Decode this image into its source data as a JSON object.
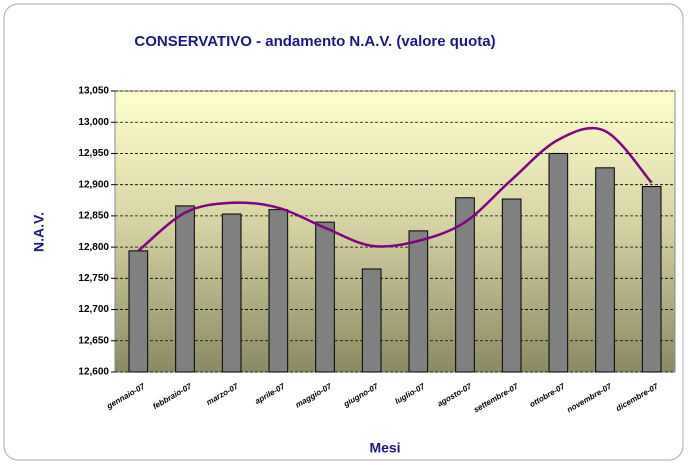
{
  "chart_data": {
    "type": "bar",
    "title": "CONSERVATIVO - andamento N.A.V. (valore quota)",
    "y_label": "N.A.V.",
    "x_label": "Mesi",
    "categories": [
      "gennaio-07",
      "febbraio-07",
      "marzo-07",
      "aprile-07",
      "maggio-07",
      "giugno-07",
      "luglio-07",
      "agosto-07",
      "settembre-07",
      "ottobre-07",
      "novembre-07",
      "dicembre-07"
    ],
    "series": [
      {
        "type": "bar",
        "color": "#808080",
        "values": [
          12.794,
          12.866,
          12.853,
          12.86,
          12.84,
          12.765,
          12.826,
          12.879,
          12.877,
          12.95,
          12.927,
          12.897
        ]
      },
      {
        "type": "line",
        "color": "#800080",
        "values": [
          12.794,
          12.855,
          12.871,
          12.863,
          12.831,
          12.802,
          12.81,
          12.84,
          12.908,
          12.972,
          12.986,
          12.903
        ]
      }
    ],
    "ylim": [
      12.6,
      13.05
    ],
    "yticks": [
      {
        "value": 12.6,
        "label": "12,600"
      },
      {
        "value": 12.65,
        "label": "12,650"
      },
      {
        "value": 12.7,
        "label": "12,700"
      },
      {
        "value": 12.75,
        "label": "12,750"
      },
      {
        "value": 12.8,
        "label": "12,800"
      },
      {
        "value": 12.85,
        "label": "12,850"
      },
      {
        "value": 12.9,
        "label": "12,900"
      },
      {
        "value": 12.95,
        "label": "12,950"
      },
      {
        "value": 13.0,
        "label": "13,000"
      },
      {
        "value": 13.05,
        "label": "13,050"
      }
    ],
    "grid": true
  }
}
